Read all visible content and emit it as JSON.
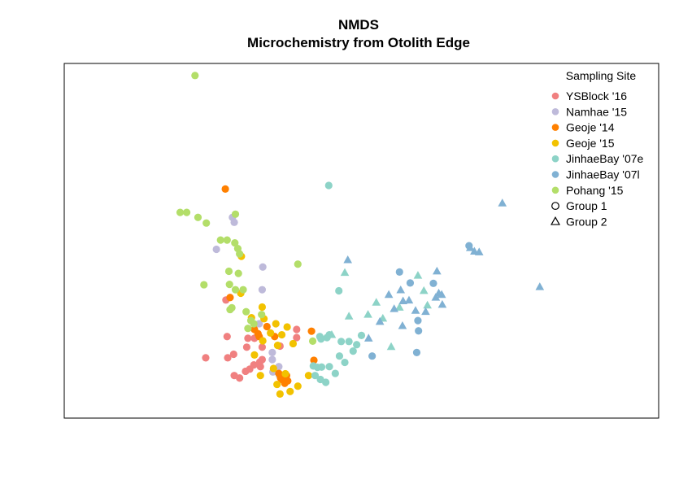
{
  "chart_data": {
    "type": "scatter",
    "title": "NMDS",
    "subtitle": "Microchemistry from Otolith Edge",
    "xlabel": "",
    "ylabel": "",
    "xlim": [
      0,
      100
    ],
    "ylim": [
      0,
      100
    ],
    "grid": false,
    "legend": {
      "title": "Sampling Site",
      "placement": "top-right",
      "shape_entries": [
        {
          "label": "Group 1",
          "shape": "circle"
        },
        {
          "label": "Group 2",
          "shape": "triangle"
        }
      ]
    },
    "series": [
      {
        "name": "YSBlock '16",
        "color": "#F08080",
        "points": [
          {
            "x": 27.5,
            "y": 17.0,
            "shape": "circle"
          },
          {
            "x": 27.4,
            "y": 23.0,
            "shape": "circle"
          },
          {
            "x": 28.5,
            "y": 18.0,
            "shape": "circle"
          },
          {
            "x": 28.6,
            "y": 12.0,
            "shape": "circle"
          },
          {
            "x": 29.5,
            "y": 11.3,
            "shape": "circle"
          },
          {
            "x": 30.5,
            "y": 13.2,
            "shape": "circle"
          },
          {
            "x": 31.2,
            "y": 13.8,
            "shape": "circle"
          },
          {
            "x": 30.7,
            "y": 20.0,
            "shape": "circle"
          },
          {
            "x": 30.9,
            "y": 22.5,
            "shape": "circle"
          },
          {
            "x": 31.9,
            "y": 15.0,
            "shape": "circle"
          },
          {
            "x": 32.0,
            "y": 22.5,
            "shape": "circle"
          },
          {
            "x": 33.0,
            "y": 14.5,
            "shape": "circle"
          },
          {
            "x": 32.9,
            "y": 15.8,
            "shape": "circle"
          },
          {
            "x": 33.3,
            "y": 20.0,
            "shape": "circle"
          },
          {
            "x": 33.3,
            "y": 16.5,
            "shape": "circle"
          },
          {
            "x": 23.8,
            "y": 17.0,
            "shape": "circle"
          },
          {
            "x": 27.2,
            "y": 33.3,
            "shape": "circle"
          },
          {
            "x": 36.3,
            "y": 20.3,
            "shape": "circle"
          },
          {
            "x": 39.1,
            "y": 25.0,
            "shape": "circle"
          },
          {
            "x": 39.1,
            "y": 22.7,
            "shape": "circle"
          }
        ]
      },
      {
        "name": "Namhae '15",
        "color": "#BEBADA",
        "points": [
          {
            "x": 28.3,
            "y": 56.6,
            "shape": "circle"
          },
          {
            "x": 28.6,
            "y": 55.2,
            "shape": "circle"
          },
          {
            "x": 25.6,
            "y": 47.6,
            "shape": "circle"
          },
          {
            "x": 33.4,
            "y": 42.6,
            "shape": "circle"
          },
          {
            "x": 33.3,
            "y": 36.2,
            "shape": "circle"
          },
          {
            "x": 32.8,
            "y": 26.6,
            "shape": "circle"
          },
          {
            "x": 35.0,
            "y": 18.5,
            "shape": "circle"
          },
          {
            "x": 35.0,
            "y": 16.5,
            "shape": "circle"
          },
          {
            "x": 36.1,
            "y": 14.5,
            "shape": "circle"
          },
          {
            "x": 36.2,
            "y": 12.0,
            "shape": "circle"
          },
          {
            "x": 35.1,
            "y": 13.0,
            "shape": "circle"
          }
        ]
      },
      {
        "name": "Geoje '14",
        "color": "#FF8000",
        "points": [
          {
            "x": 27.1,
            "y": 64.6,
            "shape": "circle"
          },
          {
            "x": 27.9,
            "y": 34.0,
            "shape": "circle"
          },
          {
            "x": 32.0,
            "y": 25.0,
            "shape": "circle"
          },
          {
            "x": 32.6,
            "y": 23.8,
            "shape": "circle"
          },
          {
            "x": 32.8,
            "y": 23.0,
            "shape": "circle"
          },
          {
            "x": 34.1,
            "y": 25.8,
            "shape": "circle"
          },
          {
            "x": 35.4,
            "y": 23.0,
            "shape": "circle"
          },
          {
            "x": 36.1,
            "y": 12.6,
            "shape": "circle"
          },
          {
            "x": 36.4,
            "y": 11.3,
            "shape": "circle"
          },
          {
            "x": 36.7,
            "y": 10.8,
            "shape": "circle"
          },
          {
            "x": 37.1,
            "y": 9.8,
            "shape": "circle"
          },
          {
            "x": 37.4,
            "y": 12.0,
            "shape": "circle"
          },
          {
            "x": 37.6,
            "y": 10.5,
            "shape": "circle"
          },
          {
            "x": 41.6,
            "y": 24.5,
            "shape": "circle"
          },
          {
            "x": 42.0,
            "y": 16.3,
            "shape": "circle"
          }
        ]
      },
      {
        "name": "Geoje '15",
        "color": "#F2C200",
        "points": [
          {
            "x": 29.8,
            "y": 45.6,
            "shape": "circle"
          },
          {
            "x": 29.7,
            "y": 35.2,
            "shape": "circle"
          },
          {
            "x": 31.5,
            "y": 28.3,
            "shape": "circle"
          },
          {
            "x": 33.3,
            "y": 31.3,
            "shape": "circle"
          },
          {
            "x": 33.6,
            "y": 28.0,
            "shape": "circle"
          },
          {
            "x": 32.0,
            "y": 17.8,
            "shape": "circle"
          },
          {
            "x": 33.4,
            "y": 21.8,
            "shape": "circle"
          },
          {
            "x": 34.7,
            "y": 24.0,
            "shape": "circle"
          },
          {
            "x": 35.6,
            "y": 26.6,
            "shape": "circle"
          },
          {
            "x": 35.9,
            "y": 20.5,
            "shape": "circle"
          },
          {
            "x": 36.6,
            "y": 23.5,
            "shape": "circle"
          },
          {
            "x": 37.5,
            "y": 25.7,
            "shape": "circle"
          },
          {
            "x": 33.0,
            "y": 12.0,
            "shape": "circle"
          },
          {
            "x": 35.2,
            "y": 14.0,
            "shape": "circle"
          },
          {
            "x": 35.8,
            "y": 9.5,
            "shape": "circle"
          },
          {
            "x": 36.3,
            "y": 6.8,
            "shape": "circle"
          },
          {
            "x": 38.0,
            "y": 7.5,
            "shape": "circle"
          },
          {
            "x": 39.3,
            "y": 9.0,
            "shape": "circle"
          },
          {
            "x": 41.1,
            "y": 12.0,
            "shape": "circle"
          },
          {
            "x": 38.5,
            "y": 21.0,
            "shape": "circle"
          },
          {
            "x": 37.2,
            "y": 12.5,
            "shape": "circle"
          }
        ]
      },
      {
        "name": "JinhaeBay '07e",
        "color": "#8DD3C7",
        "points": [
          {
            "x": 44.5,
            "y": 65.6,
            "shape": "circle"
          },
          {
            "x": 41.9,
            "y": 14.7,
            "shape": "circle"
          },
          {
            "x": 42.6,
            "y": 14.3,
            "shape": "circle"
          },
          {
            "x": 43.3,
            "y": 14.4,
            "shape": "circle"
          },
          {
            "x": 42.2,
            "y": 12.0,
            "shape": "circle"
          },
          {
            "x": 43.1,
            "y": 10.9,
            "shape": "circle"
          },
          {
            "x": 44.0,
            "y": 10.1,
            "shape": "circle"
          },
          {
            "x": 44.6,
            "y": 14.5,
            "shape": "circle"
          },
          {
            "x": 45.6,
            "y": 12.6,
            "shape": "circle"
          },
          {
            "x": 43.2,
            "y": 22.3,
            "shape": "circle"
          },
          {
            "x": 43.0,
            "y": 23.0,
            "shape": "circle"
          },
          {
            "x": 44.2,
            "y": 22.7,
            "shape": "circle"
          },
          {
            "x": 44.6,
            "y": 23.5,
            "shape": "circle"
          },
          {
            "x": 46.3,
            "y": 17.5,
            "shape": "circle"
          },
          {
            "x": 46.6,
            "y": 21.6,
            "shape": "circle"
          },
          {
            "x": 47.2,
            "y": 15.7,
            "shape": "circle"
          },
          {
            "x": 47.9,
            "y": 21.6,
            "shape": "circle"
          },
          {
            "x": 48.6,
            "y": 18.9,
            "shape": "circle"
          },
          {
            "x": 49.2,
            "y": 20.7,
            "shape": "circle"
          },
          {
            "x": 50.0,
            "y": 23.3,
            "shape": "circle"
          },
          {
            "x": 46.2,
            "y": 35.9,
            "shape": "circle"
          },
          {
            "x": 47.9,
            "y": 28.7,
            "shape": "triangle"
          },
          {
            "x": 51.1,
            "y": 29.2,
            "shape": "triangle"
          },
          {
            "x": 52.5,
            "y": 32.6,
            "shape": "triangle"
          },
          {
            "x": 47.2,
            "y": 41.0,
            "shape": "triangle"
          },
          {
            "x": 53.6,
            "y": 28.1,
            "shape": "triangle"
          },
          {
            "x": 55.0,
            "y": 20.1,
            "shape": "triangle"
          },
          {
            "x": 56.4,
            "y": 31.2,
            "shape": "triangle"
          },
          {
            "x": 59.5,
            "y": 40.2,
            "shape": "triangle"
          },
          {
            "x": 60.5,
            "y": 35.9,
            "shape": "triangle"
          },
          {
            "x": 61.1,
            "y": 31.8,
            "shape": "triangle"
          },
          {
            "x": 45.0,
            "y": 23.5,
            "shape": "triangle"
          }
        ]
      },
      {
        "name": "JinhaeBay '07l",
        "color": "#80B1D3",
        "points": [
          {
            "x": 51.8,
            "y": 17.5,
            "shape": "circle"
          },
          {
            "x": 58.2,
            "y": 38.1,
            "shape": "circle"
          },
          {
            "x": 56.4,
            "y": 41.2,
            "shape": "circle"
          },
          {
            "x": 59.5,
            "y": 27.5,
            "shape": "circle"
          },
          {
            "x": 59.3,
            "y": 18.5,
            "shape": "circle"
          },
          {
            "x": 62.1,
            "y": 38.0,
            "shape": "circle"
          },
          {
            "x": 68.1,
            "y": 48.6,
            "shape": "circle"
          },
          {
            "x": 59.6,
            "y": 24.6,
            "shape": "circle"
          },
          {
            "x": 47.7,
            "y": 44.6,
            "shape": "triangle"
          },
          {
            "x": 56.9,
            "y": 26.0,
            "shape": "triangle"
          },
          {
            "x": 55.5,
            "y": 30.8,
            "shape": "triangle"
          },
          {
            "x": 57.0,
            "y": 33.0,
            "shape": "triangle"
          },
          {
            "x": 59.1,
            "y": 30.3,
            "shape": "triangle"
          },
          {
            "x": 54.6,
            "y": 34.8,
            "shape": "triangle"
          },
          {
            "x": 56.6,
            "y": 36.1,
            "shape": "triangle"
          },
          {
            "x": 58.0,
            "y": 33.2,
            "shape": "triangle"
          },
          {
            "x": 60.8,
            "y": 30.0,
            "shape": "triangle"
          },
          {
            "x": 62.5,
            "y": 34.0,
            "shape": "triangle"
          },
          {
            "x": 63.0,
            "y": 35.2,
            "shape": "triangle"
          },
          {
            "x": 63.5,
            "y": 34.8,
            "shape": "triangle"
          },
          {
            "x": 62.7,
            "y": 41.4,
            "shape": "triangle"
          },
          {
            "x": 63.6,
            "y": 32.0,
            "shape": "triangle"
          },
          {
            "x": 68.3,
            "y": 48.0,
            "shape": "triangle"
          },
          {
            "x": 69.0,
            "y": 47.0,
            "shape": "triangle"
          },
          {
            "x": 69.8,
            "y": 46.8,
            "shape": "triangle"
          },
          {
            "x": 73.7,
            "y": 60.6,
            "shape": "triangle"
          },
          {
            "x": 80.0,
            "y": 37.0,
            "shape": "triangle"
          },
          {
            "x": 53.1,
            "y": 27.2,
            "shape": "triangle"
          },
          {
            "x": 51.2,
            "y": 22.5,
            "shape": "triangle"
          }
        ]
      },
      {
        "name": "Pohang '15",
        "color": "#B3DE69",
        "points": [
          {
            "x": 22.0,
            "y": 96.6,
            "shape": "circle"
          },
          {
            "x": 19.5,
            "y": 58.0,
            "shape": "circle"
          },
          {
            "x": 20.6,
            "y": 58.0,
            "shape": "circle"
          },
          {
            "x": 22.5,
            "y": 56.6,
            "shape": "circle"
          },
          {
            "x": 23.9,
            "y": 55.0,
            "shape": "circle"
          },
          {
            "x": 28.8,
            "y": 57.5,
            "shape": "circle"
          },
          {
            "x": 26.3,
            "y": 50.2,
            "shape": "circle"
          },
          {
            "x": 27.4,
            "y": 50.2,
            "shape": "circle"
          },
          {
            "x": 28.7,
            "y": 49.4,
            "shape": "circle"
          },
          {
            "x": 29.2,
            "y": 47.8,
            "shape": "circle"
          },
          {
            "x": 29.5,
            "y": 46.3,
            "shape": "circle"
          },
          {
            "x": 23.5,
            "y": 37.6,
            "shape": "circle"
          },
          {
            "x": 27.7,
            "y": 41.4,
            "shape": "circle"
          },
          {
            "x": 29.3,
            "y": 40.8,
            "shape": "circle"
          },
          {
            "x": 27.8,
            "y": 37.7,
            "shape": "circle"
          },
          {
            "x": 28.8,
            "y": 36.2,
            "shape": "circle"
          },
          {
            "x": 30.1,
            "y": 36.2,
            "shape": "circle"
          },
          {
            "x": 27.9,
            "y": 30.6,
            "shape": "circle"
          },
          {
            "x": 28.2,
            "y": 31.1,
            "shape": "circle"
          },
          {
            "x": 30.6,
            "y": 30.0,
            "shape": "circle"
          },
          {
            "x": 31.4,
            "y": 27.5,
            "shape": "circle"
          },
          {
            "x": 33.2,
            "y": 29.2,
            "shape": "circle"
          },
          {
            "x": 30.9,
            "y": 25.3,
            "shape": "circle"
          },
          {
            "x": 31.9,
            "y": 26.6,
            "shape": "circle"
          },
          {
            "x": 39.3,
            "y": 43.4,
            "shape": "circle"
          },
          {
            "x": 41.8,
            "y": 21.7,
            "shape": "circle"
          }
        ]
      }
    ]
  }
}
